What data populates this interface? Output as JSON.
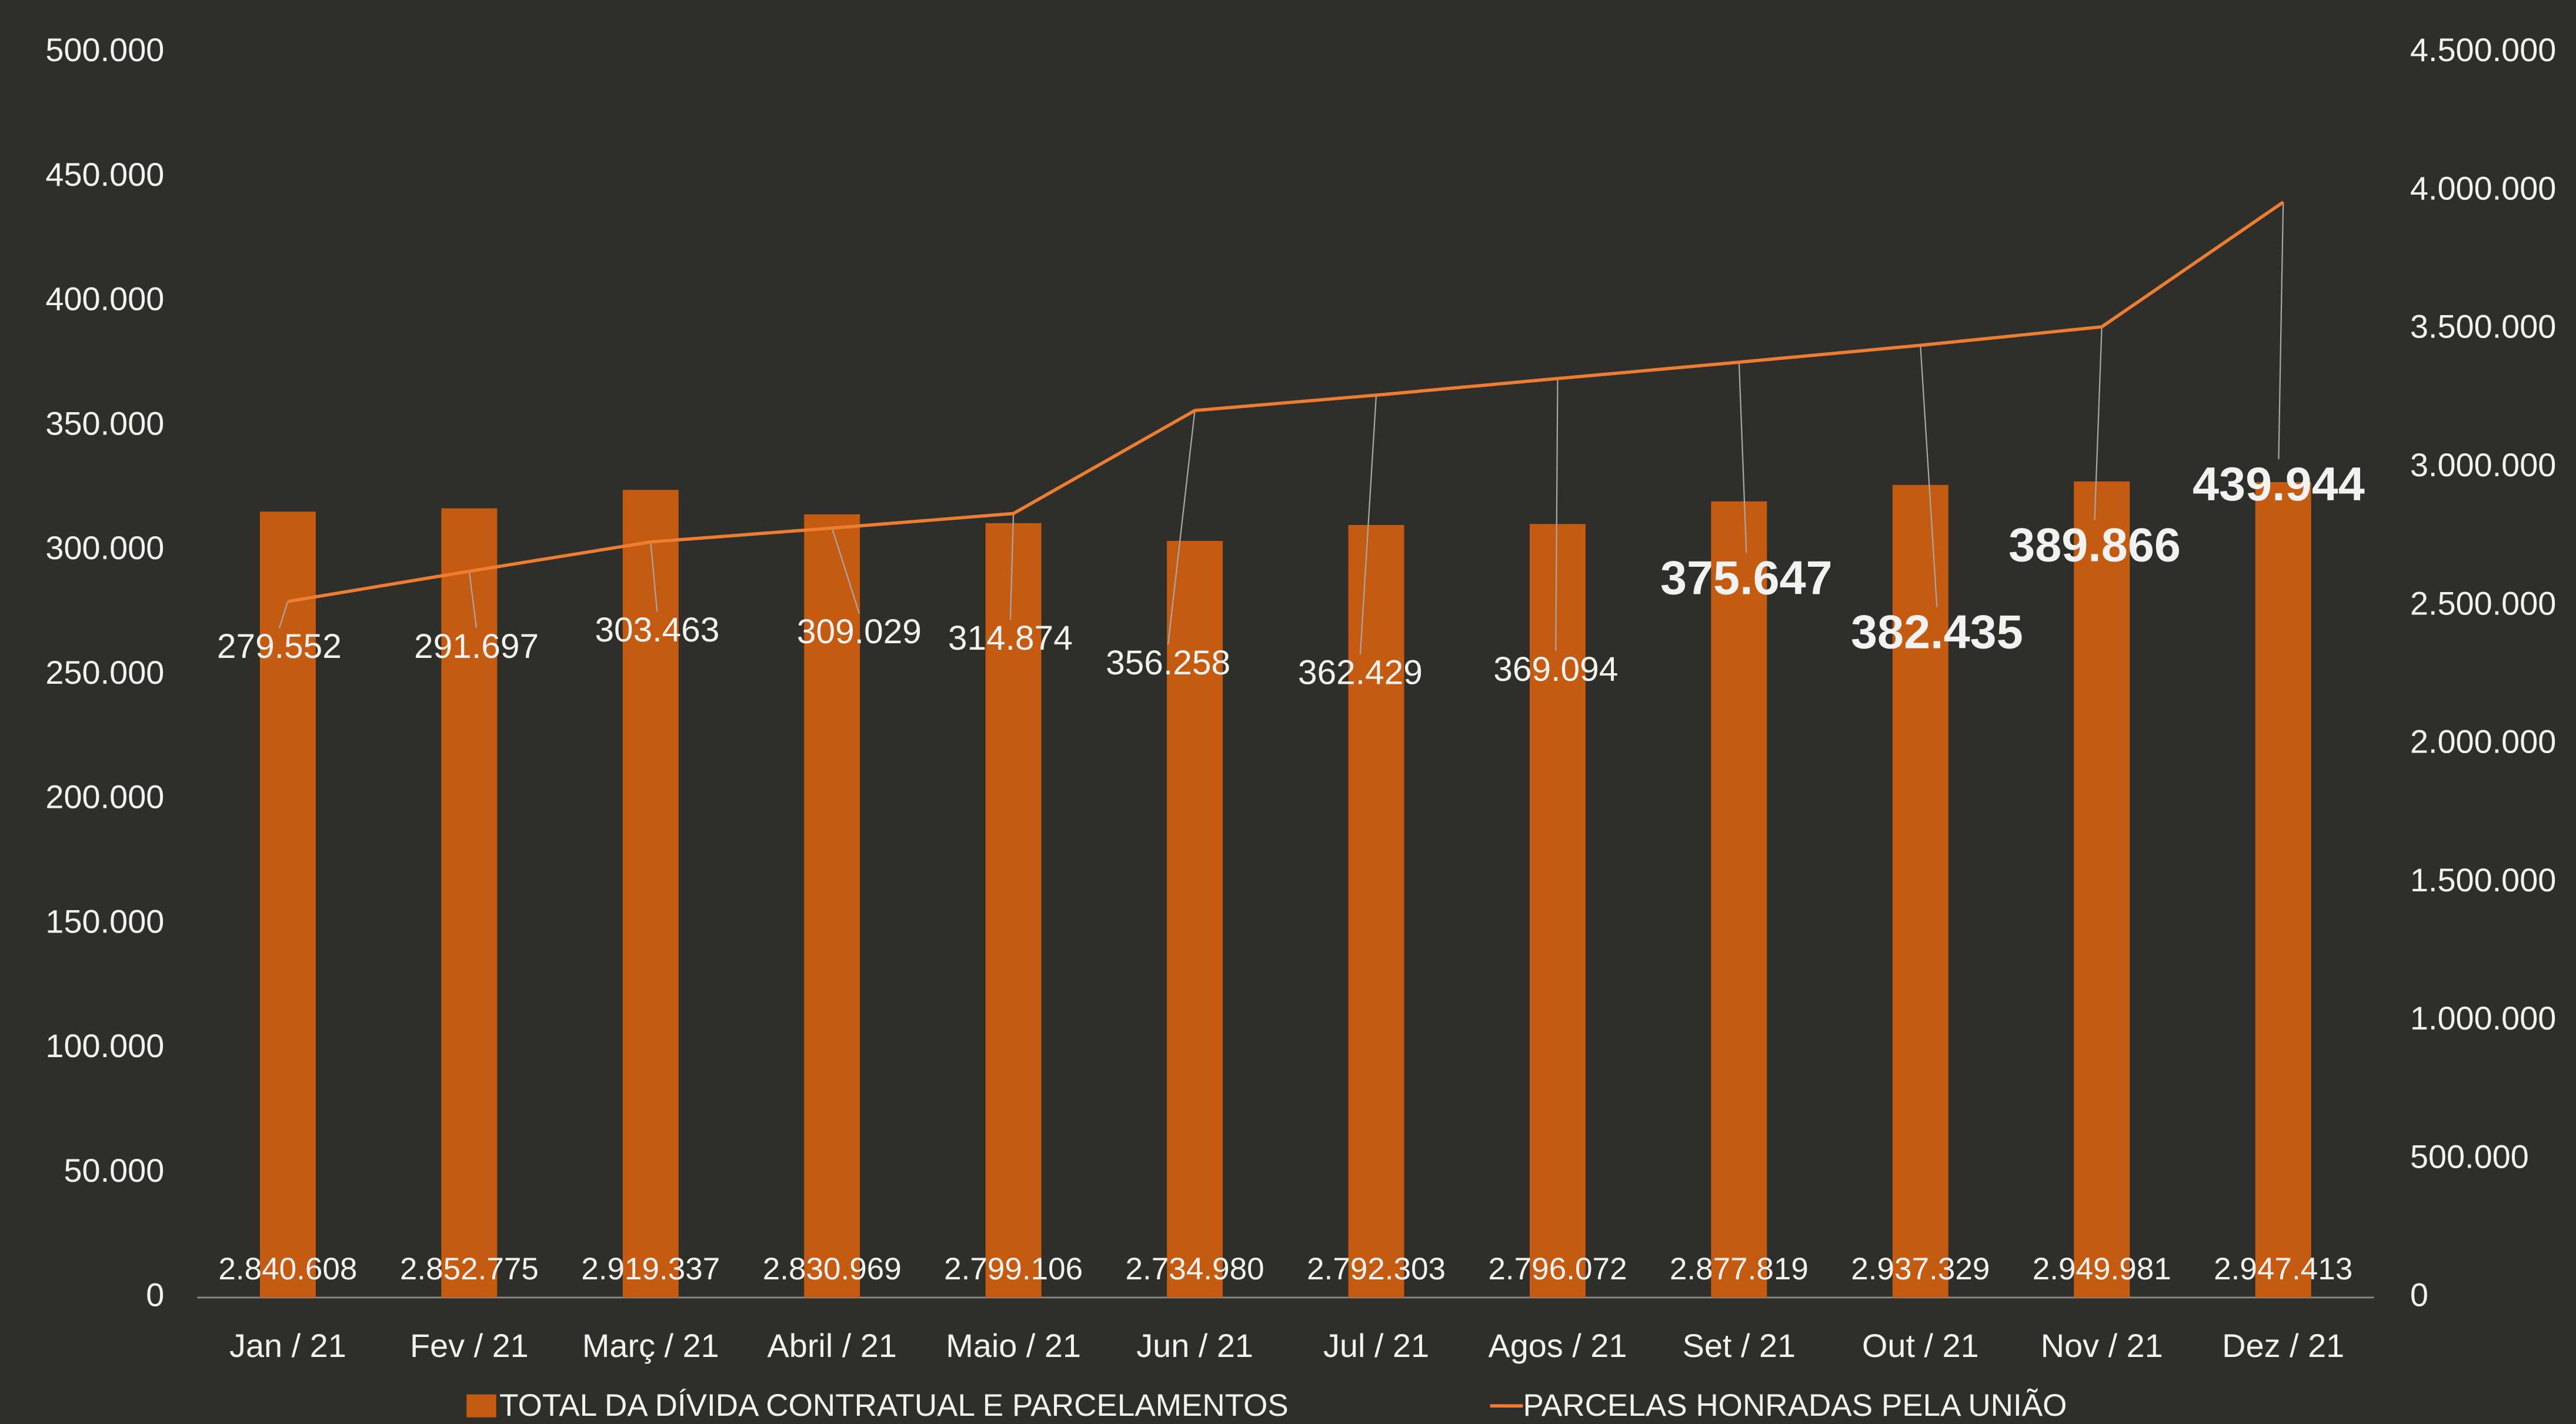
{
  "chart_data": {
    "type": "bar+line",
    "categories": [
      "Jan / 21",
      "Fev / 21",
      "Març / 21",
      "Abril / 21",
      "Maio / 21",
      "Jun / 21",
      "Jul / 21",
      "Agos / 21",
      "Set / 21",
      "Out / 21",
      "Nov / 21",
      "Dez / 21"
    ],
    "series": [
      {
        "name": "TOTAL DA DÍVIDA CONTRATUAL E PARCELAMENTOS",
        "type": "bar",
        "axis": "y2",
        "color": "#c55a11",
        "values": [
          2840608,
          2852775,
          2919337,
          2830969,
          2799106,
          2734980,
          2792303,
          2796072,
          2877819,
          2937329,
          2949981,
          2947413
        ],
        "value_labels": [
          "2.840.608",
          "2.852.775",
          "2.919.337",
          "2.830.969",
          "2.799.106",
          "2.734.980",
          "2.792.303",
          "2.796.072",
          "2.877.819",
          "2.937.329",
          "2.949.981",
          "2.947.413"
        ]
      },
      {
        "name": "PARCELAS HONRADAS PELA UNIÃO",
        "type": "line",
        "axis": "y",
        "color": "#ed7d31",
        "values": [
          279552,
          291697,
          303463,
          309029,
          314874,
          356258,
          362429,
          369094,
          375647,
          382435,
          389866,
          439944
        ],
        "value_labels": [
          "279.552",
          "291.697",
          "303.463",
          "309.029",
          "314.874",
          "356.258",
          "362.429",
          "369.094",
          "375.647",
          "382.435",
          "389.866",
          "439.944"
        ]
      }
    ],
    "ylim": [
      0,
      500000
    ],
    "yticks": [
      0,
      {
        "value": 50000,
        "label": "50.000"
      },
      {
        "value": 100000,
        "label": "100.000"
      },
      {
        "value": 150000,
        "label": "150.000"
      },
      {
        "value": 200000,
        "label": "200.000"
      },
      {
        "value": 250000,
        "label": "250.000"
      },
      {
        "value": 300000,
        "label": "300.000"
      },
      {
        "value": 350000,
        "label": "350.000"
      },
      {
        "value": 400000,
        "label": "400.000"
      },
      {
        "value": 450000,
        "label": "450.000"
      },
      {
        "value": 500000,
        "label": "500.000"
      }
    ],
    "y2lim": [
      0,
      4500000
    ],
    "y2ticks": [
      0,
      {
        "value": 500000,
        "label": "500.000"
      },
      {
        "value": 1000000,
        "label": "1.000.000"
      },
      {
        "value": 1500000,
        "label": "1.500.000"
      },
      {
        "value": 2000000,
        "label": "2.000.000"
      },
      {
        "value": 2500000,
        "label": "2.500.000"
      },
      {
        "value": 3000000,
        "label": "3.000.000"
      },
      {
        "value": 3500000,
        "label": "3.500.000"
      },
      {
        "value": 4000000,
        "label": "4.000.000"
      },
      {
        "value": 4500000,
        "label": "4.500.000"
      }
    ],
    "grid": false,
    "legend": "bottom"
  }
}
